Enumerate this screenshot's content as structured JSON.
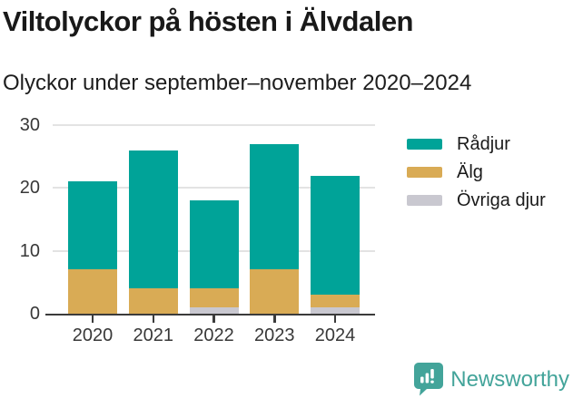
{
  "header": {
    "title": "Viltolyckor på hösten i Älvdalen",
    "subtitle": "Olyckor under september–november 2020–2024"
  },
  "chart_data": {
    "type": "bar",
    "stacked": true,
    "title": "Viltolyckor på hösten i Älvdalen",
    "subtitle": "Olyckor under september–november 2020–2024",
    "categories": [
      "2020",
      "2021",
      "2022",
      "2023",
      "2024"
    ],
    "series": [
      {
        "name": "Rådjur",
        "color": "#00a398",
        "values": [
          14,
          22,
          14,
          20,
          19
        ]
      },
      {
        "name": "Älg",
        "color": "#d9ab55",
        "values": [
          7,
          4,
          3,
          7,
          2
        ]
      },
      {
        "name": "Övriga djur",
        "color": "#c9c8d0",
        "values": [
          0,
          0,
          1,
          0,
          1
        ]
      }
    ],
    "stack_order_bottom_to_top": [
      "Övriga djur",
      "Älg",
      "Rådjur"
    ],
    "totals": [
      21,
      26,
      18,
      27,
      22
    ],
    "xlabel": "",
    "ylabel": "",
    "ylim": [
      0,
      30
    ],
    "yticks": [
      0,
      10,
      20,
      30
    ],
    "grid": true,
    "legend_position": "right"
  },
  "footer": {
    "brand": "Newsworthy",
    "brand_color": "#43a49a",
    "logo_icon": "bar-chart-speech-bubble-icon"
  }
}
